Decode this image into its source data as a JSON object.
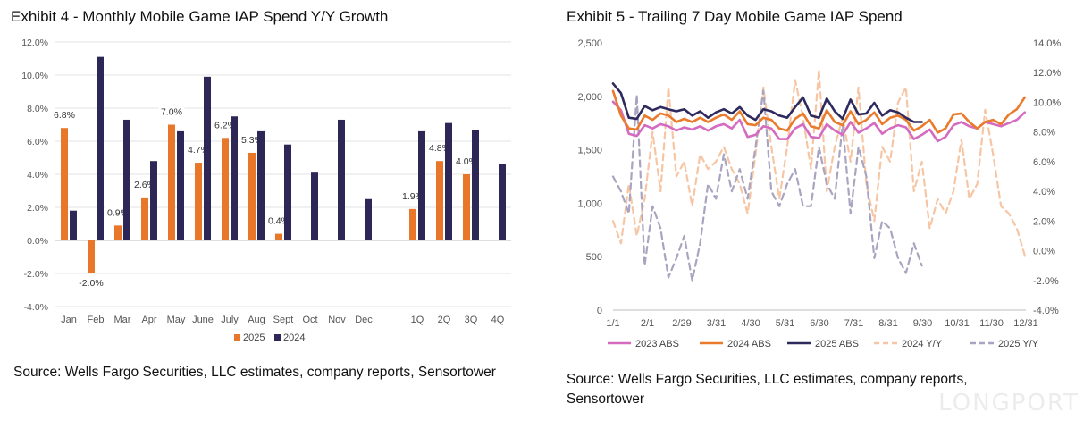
{
  "left": {
    "title": "Exhibit 4 - Monthly Mobile Game IAP Spend Y/Y Growth",
    "source": "Source: Wells Fargo Securities, LLC estimates, company reports, Sensortower"
  },
  "right": {
    "title": "Exhibit 5 - Trailing 7 Day Mobile Game IAP Spend",
    "source": "Source: Wells Fargo Securities, LLC estimates, company reports, Sensortower"
  },
  "watermark": "LONGPORT",
  "colors": {
    "s2025": "#e8772a",
    "s2024": "#2d2757",
    "abs2023": "#d56bc0",
    "abs2024": "#ea7a2c",
    "abs2025": "#2f2a5e",
    "yy2024": "#f6c6a4",
    "yy2025": "#a9a4c0"
  },
  "chart_data": [
    {
      "type": "bar",
      "categories": [
        "Jan",
        "Feb",
        "Mar",
        "Apr",
        "May",
        "June",
        "July",
        "Aug",
        "Sept",
        "Oct",
        "Nov",
        "Dec",
        "",
        "1Q",
        "2Q",
        "3Q",
        "4Q"
      ],
      "series": [
        {
          "name": "2025",
          "values": [
            6.8,
            -2.0,
            0.9,
            2.6,
            7.0,
            4.7,
            6.2,
            5.3,
            0.4,
            null,
            null,
            null,
            null,
            1.9,
            4.8,
            4.0,
            null
          ],
          "labels": [
            "6.8%",
            "-2.0%",
            "0.9%",
            "2.6%",
            "7.0%",
            "4.7%",
            "6.2%",
            "5.3%",
            "0.4%",
            "",
            "",
            "",
            "",
            "1.9%",
            "4.8%",
            "4.0%",
            ""
          ]
        },
        {
          "name": "2024",
          "values": [
            1.8,
            11.1,
            7.3,
            4.8,
            6.6,
            9.9,
            7.5,
            6.6,
            5.8,
            4.1,
            7.3,
            2.5,
            null,
            6.6,
            7.1,
            6.7,
            4.6
          ]
        }
      ],
      "ylim": [
        -4,
        12
      ],
      "yticks": [
        "-4.0%",
        "-2.0%",
        "0.0%",
        "2.0%",
        "4.0%",
        "6.0%",
        "8.0%",
        "10.0%",
        "12.0%"
      ],
      "grid": true,
      "legend": "bottom"
    },
    {
      "type": "line",
      "x_ticks": [
        "1/1",
        "2/1",
        "2/29",
        "3/31",
        "4/30",
        "5/31",
        "6/30",
        "7/31",
        "8/31",
        "9/30",
        "10/31",
        "11/30",
        "12/31"
      ],
      "y_left_ticks": [
        "0",
        "500",
        "1,000",
        "1,500",
        "2,000",
        "2,500"
      ],
      "y_right_ticks": [
        "-4.0%",
        "-2.0%",
        "0.0%",
        "2.0%",
        "4.0%",
        "6.0%",
        "8.0%",
        "10.0%",
        "12.0%",
        "14.0%"
      ],
      "ylim_left": [
        0,
        2500
      ],
      "ylim_right": [
        -4,
        14
      ],
      "legend": "bottom",
      "series": [
        {
          "name": "2023 ABS",
          "axis": "left",
          "style": "solid",
          "x": [
            0,
            7,
            14,
            21,
            28,
            35,
            42,
            49,
            56,
            63,
            70,
            77,
            84,
            91,
            98,
            105,
            112,
            119,
            126,
            133,
            140,
            147,
            154,
            161,
            168,
            175,
            182,
            189,
            196,
            203,
            210,
            217,
            224,
            231,
            238,
            245,
            252,
            259,
            266,
            273,
            280,
            287,
            294,
            301,
            308,
            315,
            322,
            329,
            336,
            343,
            350,
            357,
            364
          ],
          "y": [
            1950,
            1870,
            1650,
            1630,
            1730,
            1700,
            1740,
            1720,
            1680,
            1710,
            1690,
            1720,
            1680,
            1720,
            1740,
            1700,
            1780,
            1620,
            1640,
            1720,
            1700,
            1600,
            1600,
            1700,
            1740,
            1620,
            1610,
            1740,
            1680,
            1640,
            1760,
            1660,
            1700,
            1750,
            1650,
            1700,
            1730,
            1710,
            1600,
            1640,
            1690,
            1580,
            1620,
            1730,
            1760,
            1720,
            1700,
            1760,
            1740,
            1720,
            1750,
            1780,
            1850
          ]
        },
        {
          "name": "2024 ABS",
          "axis": "left",
          "style": "solid",
          "x": [
            0,
            7,
            14,
            21,
            28,
            35,
            42,
            49,
            56,
            63,
            70,
            77,
            84,
            91,
            98,
            105,
            112,
            119,
            126,
            133,
            140,
            147,
            154,
            161,
            168,
            175,
            182,
            189,
            196,
            203,
            210,
            217,
            224,
            231,
            238,
            245,
            252,
            259,
            266,
            273,
            280,
            287,
            294,
            301,
            308,
            315,
            322,
            329,
            336,
            343,
            350,
            357,
            364
          ],
          "y": [
            2050,
            1820,
            1700,
            1690,
            1820,
            1780,
            1840,
            1820,
            1760,
            1790,
            1760,
            1800,
            1760,
            1800,
            1830,
            1780,
            1860,
            1740,
            1730,
            1800,
            1780,
            1700,
            1680,
            1790,
            1840,
            1720,
            1700,
            1870,
            1760,
            1730,
            1860,
            1740,
            1780,
            1850,
            1740,
            1800,
            1820,
            1780,
            1680,
            1720,
            1780,
            1660,
            1700,
            1830,
            1840,
            1760,
            1700,
            1760,
            1780,
            1740,
            1830,
            1880,
            1990
          ]
        },
        {
          "name": "2025 ABS",
          "axis": "left",
          "style": "solid",
          "x": [
            0,
            7,
            14,
            21,
            28,
            35,
            42,
            49,
            56,
            63,
            70,
            77,
            84,
            91,
            98,
            105,
            112,
            119,
            126,
            133,
            140,
            147,
            154,
            161,
            168,
            175,
            182,
            189,
            196,
            203,
            210,
            217,
            224,
            231,
            238,
            245,
            252,
            259,
            266,
            273
          ],
          "y": [
            2120,
            2030,
            1800,
            1790,
            1910,
            1870,
            1900,
            1880,
            1860,
            1880,
            1820,
            1860,
            1800,
            1850,
            1880,
            1840,
            1900,
            1820,
            1780,
            1880,
            1860,
            1820,
            1800,
            1900,
            1990,
            1820,
            1800,
            1980,
            1860,
            1790,
            1970,
            1830,
            1840,
            1940,
            1820,
            1870,
            1850,
            1800,
            1760,
            1760
          ]
        },
        {
          "name": "2024 Y/Y",
          "axis": "right",
          "style": "dashed",
          "x": [
            0,
            7,
            14,
            21,
            28,
            35,
            42,
            49,
            56,
            63,
            70,
            77,
            84,
            91,
            98,
            105,
            112,
            119,
            126,
            133,
            140,
            147,
            154,
            161,
            168,
            175,
            182,
            189,
            196,
            203,
            210,
            217,
            224,
            231,
            238,
            245,
            252,
            259,
            266,
            273,
            280,
            287,
            294,
            301,
            308,
            315,
            322,
            329,
            336,
            343,
            350,
            357,
            364
          ],
          "y": [
            2.0,
            0.5,
            4.5,
            1.0,
            3.5,
            8.0,
            4.0,
            11.0,
            5.0,
            6.0,
            3.0,
            6.5,
            5.5,
            6.0,
            7.0,
            5.5,
            4.5,
            2.5,
            6.5,
            11.0,
            7.0,
            3.5,
            7.0,
            11.5,
            9.0,
            5.5,
            12.2,
            4.0,
            7.0,
            9.0,
            6.0,
            11.0,
            4.5,
            2.0,
            7.0,
            6.0,
            10.0,
            11.0,
            4.0,
            6.0,
            1.5,
            3.5,
            2.5,
            4.0,
            7.5,
            3.5,
            4.5,
            9.5,
            6.5,
            3.0,
            2.5,
            1.5,
            -0.3
          ]
        },
        {
          "name": "2025 Y/Y",
          "axis": "right",
          "style": "dashed",
          "x": [
            0,
            7,
            14,
            21,
            28,
            35,
            42,
            49,
            56,
            63,
            70,
            77,
            84,
            91,
            98,
            105,
            112,
            119,
            126,
            133,
            140,
            147,
            154,
            161,
            168,
            175,
            182,
            189,
            196,
            203,
            210,
            217,
            224,
            231,
            238,
            245,
            252,
            259,
            266,
            273
          ],
          "y": [
            5.0,
            4.0,
            2.5,
            10.5,
            -1.0,
            3.0,
            1.5,
            -1.8,
            -0.5,
            1.0,
            -2.0,
            0.5,
            4.5,
            3.5,
            6.5,
            4.0,
            5.5,
            3.5,
            7.0,
            10.8,
            4.0,
            3.0,
            4.5,
            5.5,
            3.0,
            3.0,
            7.0,
            4.5,
            3.5,
            8.5,
            2.5,
            7.0,
            5.0,
            -0.5,
            2.0,
            1.5,
            -0.5,
            -1.5,
            0.5,
            -1.0
          ]
        }
      ]
    }
  ]
}
